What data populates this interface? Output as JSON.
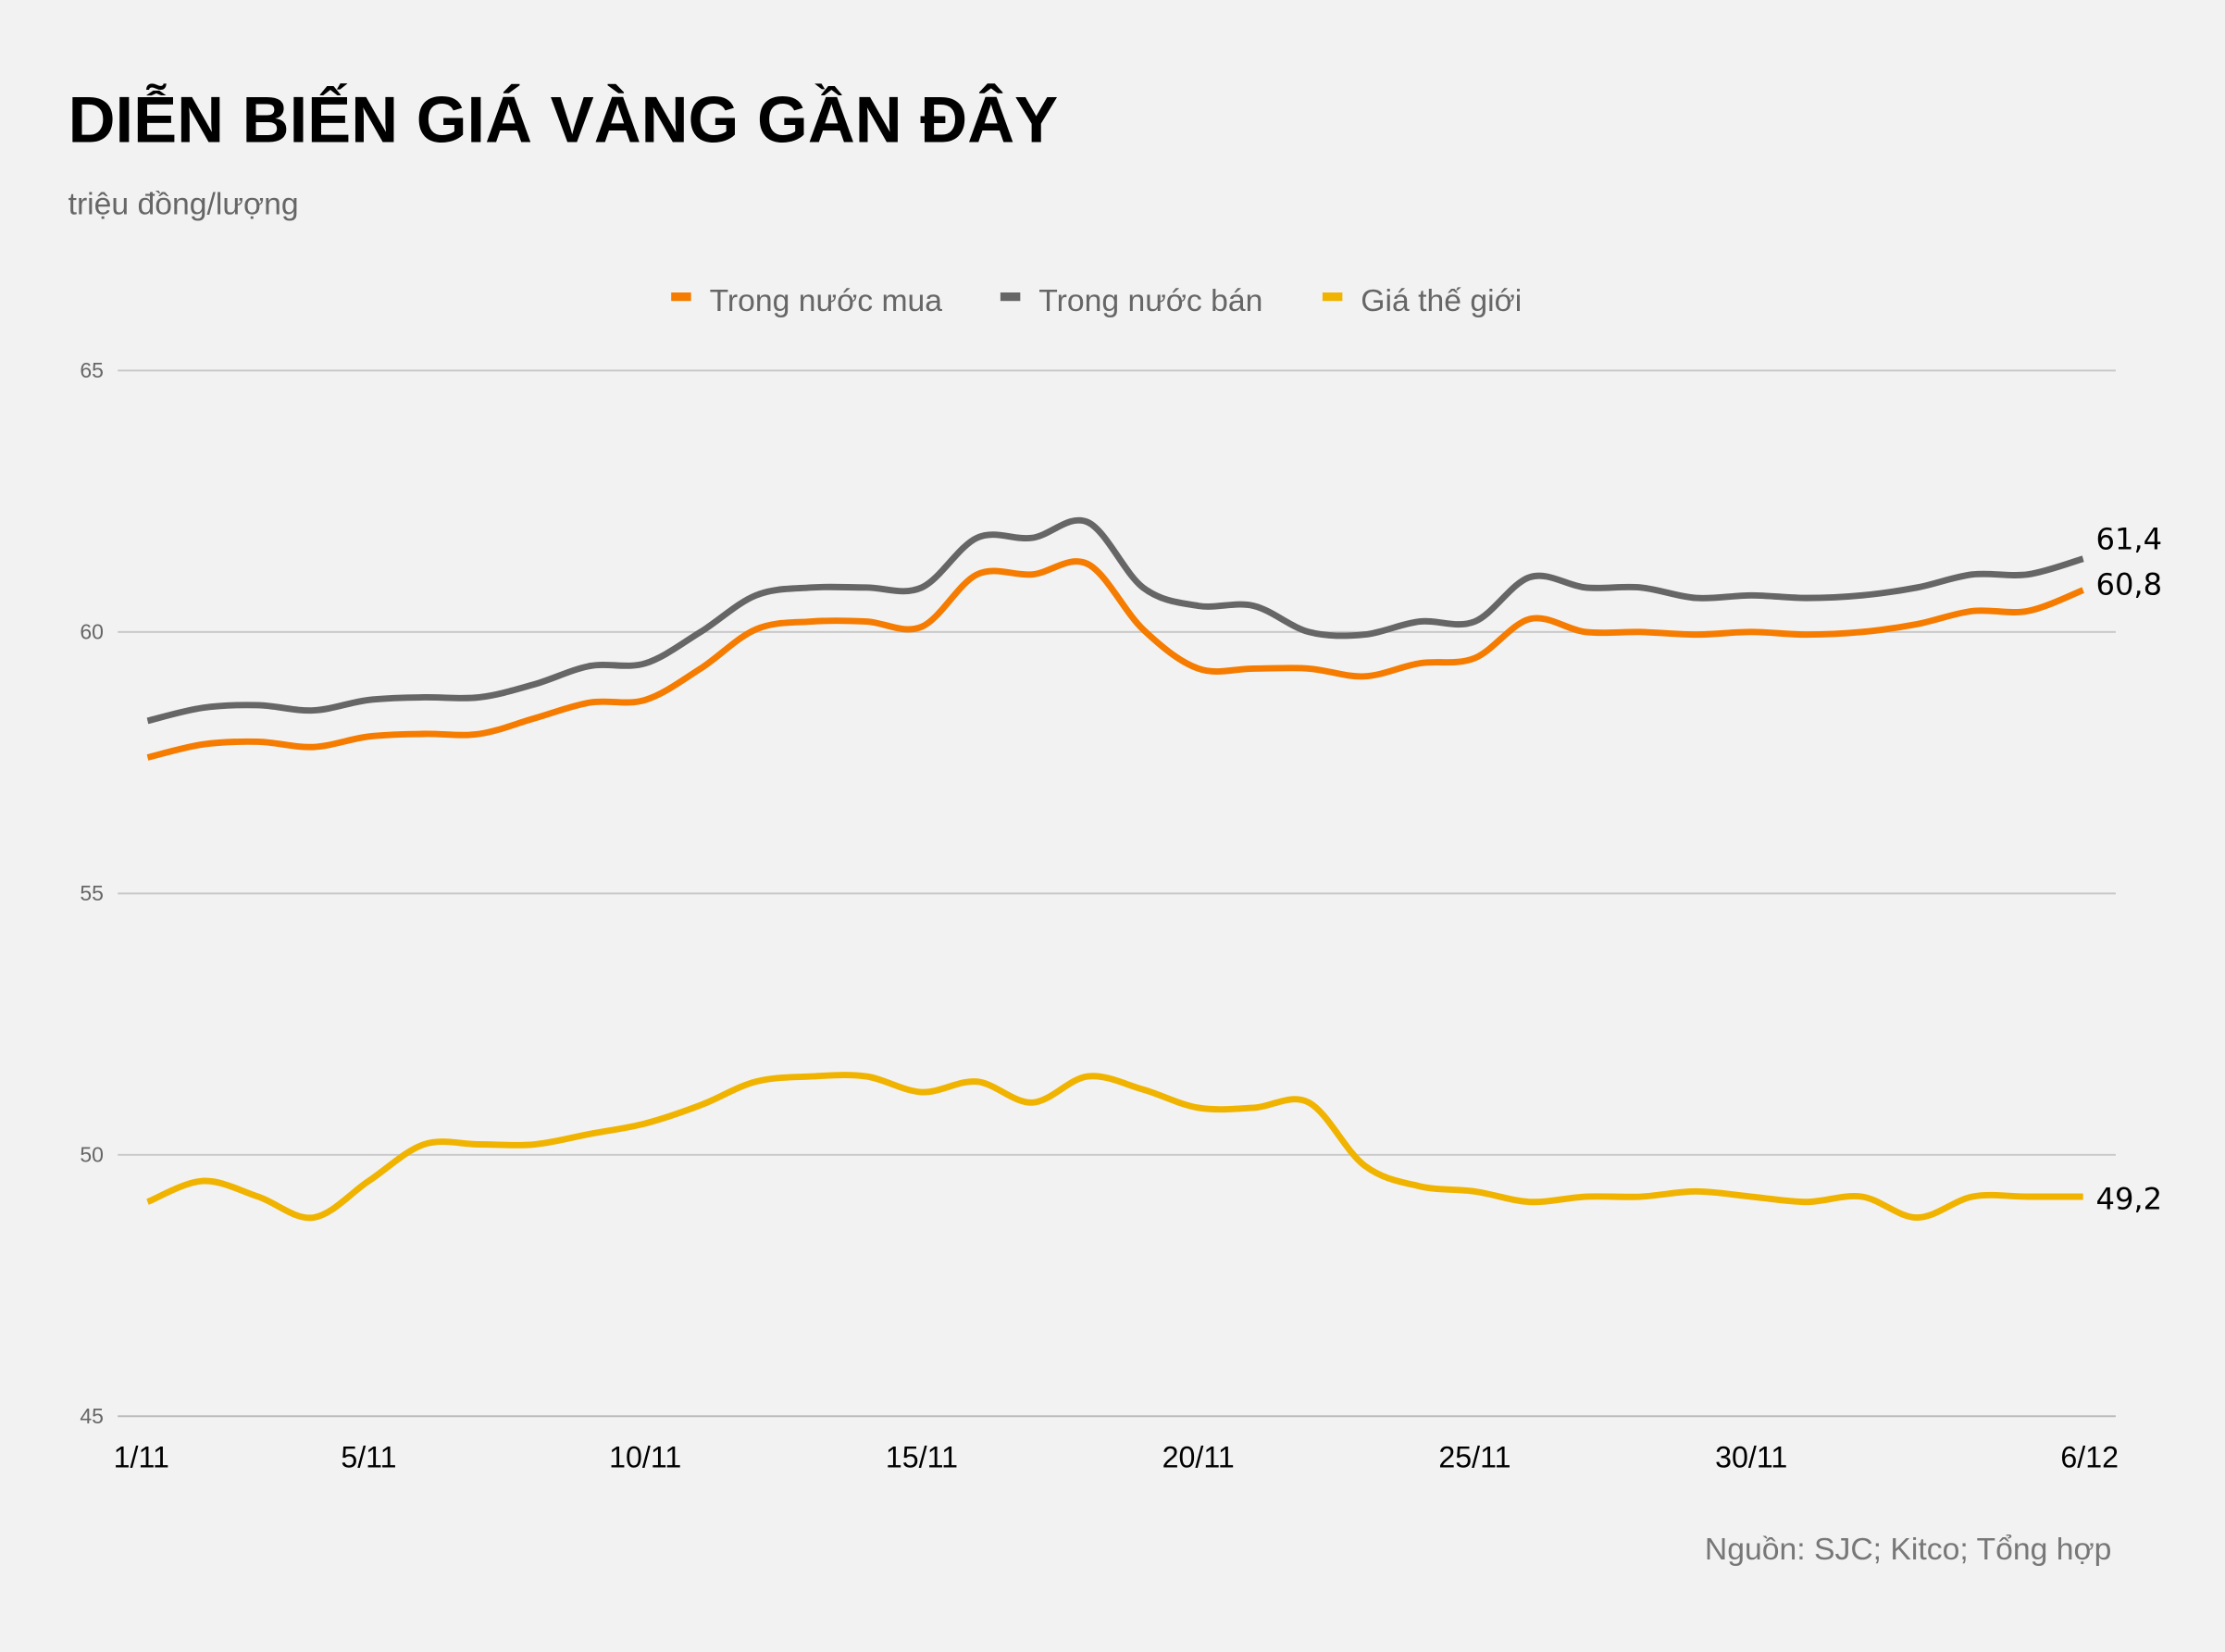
{
  "chart_data": {
    "type": "line",
    "title": "DIỄN BIẾN GIÁ VÀNG GẦN ĐÂY",
    "subtitle": "triệu đồng/lượng",
    "source": "Nguồn: SJC; Kitco; Tổng hợp",
    "legend_position": "top",
    "grid": true,
    "ylim": [
      45,
      65
    ],
    "yticks": [
      "45",
      "50",
      "55",
      "60",
      "65"
    ],
    "x": [
      "1/11",
      "2/11",
      "3/11",
      "4/11",
      "5/11",
      "6/11",
      "7/11",
      "8/11",
      "9/11",
      "10/11",
      "11/11",
      "12/11",
      "13/11",
      "14/11",
      "15/11",
      "16/11",
      "17/11",
      "18/11",
      "19/11",
      "20/11",
      "21/11",
      "22/11",
      "23/11",
      "24/11",
      "25/11",
      "26/11",
      "27/11",
      "28/11",
      "29/11",
      "30/11",
      "1/12",
      "2/12",
      "3/12",
      "4/12",
      "5/12",
      "6/12"
    ],
    "xtick_labels": [
      "1/11",
      "5/11",
      "10/11",
      "15/11",
      "20/11",
      "25/11",
      "30/11",
      "6/12"
    ],
    "series": [
      {
        "name": "Trong nước mua",
        "color": "#f57c00",
        "end_label": "60,8",
        "values": [
          57.6,
          57.85,
          57.9,
          57.8,
          58.0,
          58.05,
          58.05,
          58.35,
          58.65,
          58.7,
          59.3,
          60.05,
          60.2,
          60.2,
          60.1,
          61.1,
          61.1,
          61.3,
          60.05,
          59.3,
          59.3,
          59.3,
          59.15,
          59.4,
          59.5,
          60.25,
          60.0,
          60.0,
          59.95,
          60.0,
          59.95,
          60.0,
          60.15,
          60.4,
          60.4,
          60.8
        ]
      },
      {
        "name": "Trong nước bán",
        "color": "#666666",
        "end_label": "61,4",
        "values": [
          58.3,
          58.55,
          58.6,
          58.5,
          58.7,
          58.75,
          58.75,
          59.0,
          59.35,
          59.4,
          60.0,
          60.7,
          60.85,
          60.85,
          60.85,
          61.8,
          61.8,
          62.1,
          60.85,
          60.5,
          60.5,
          60.0,
          59.95,
          60.2,
          60.2,
          61.05,
          60.85,
          60.85,
          60.65,
          60.7,
          60.65,
          60.7,
          60.85,
          61.1,
          61.1,
          61.4
        ]
      },
      {
        "name": "Giá thế giới",
        "color": "#f0b400",
        "end_label": "49,2",
        "values": [
          49.1,
          49.5,
          49.2,
          48.8,
          49.5,
          50.2,
          50.2,
          50.2,
          50.4,
          50.6,
          50.95,
          51.4,
          51.5,
          51.5,
          51.2,
          51.4,
          51.0,
          51.5,
          51.25,
          50.9,
          50.9,
          51.0,
          49.8,
          49.4,
          49.3,
          49.1,
          49.2,
          49.2,
          49.3,
          49.2,
          49.1,
          49.2,
          48.8,
          49.2,
          49.2,
          49.2
        ]
      }
    ]
  }
}
